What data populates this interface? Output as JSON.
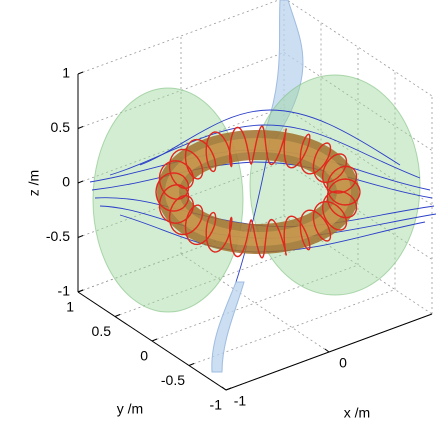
{
  "chart_data": {
    "type": "surface3d",
    "xlabel": "x /m",
    "ylabel": "y /m",
    "zlabel": "z /m",
    "xlim": [
      -1,
      1
    ],
    "ylim": [
      -1,
      1
    ],
    "zlim": [
      -1,
      1
    ],
    "xticks": [
      -1,
      0
    ],
    "yticks": [
      1,
      0.5,
      0,
      -0.5,
      -1
    ],
    "zticks": [
      1,
      0.5,
      0,
      -0.5,
      -1
    ],
    "grid": true
  }
}
